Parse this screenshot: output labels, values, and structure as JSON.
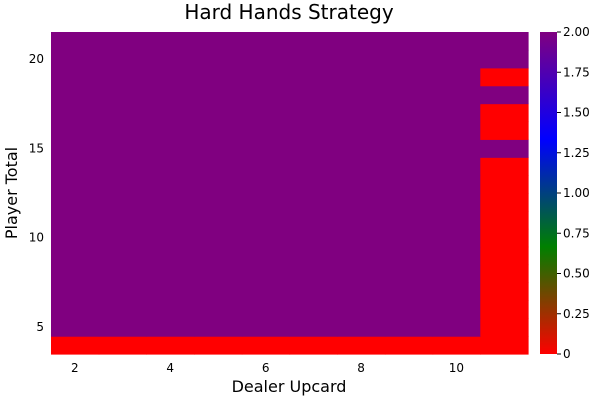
{
  "chart_data": {
    "type": "heatmap",
    "title": "Hard Hands Strategy",
    "xlabel": "Dealer Upcard",
    "ylabel": "Player Total",
    "x": [
      2,
      3,
      4,
      5,
      6,
      7,
      8,
      9,
      10,
      11
    ],
    "y": [
      4,
      5,
      6,
      7,
      8,
      9,
      10,
      11,
      12,
      13,
      14,
      15,
      16,
      17,
      18,
      19,
      20,
      21
    ],
    "x_ticks": [
      2,
      4,
      6,
      8,
      10
    ],
    "y_ticks": [
      5,
      10,
      15,
      20
    ],
    "xlim": [
      1.5,
      11.5
    ],
    "ylim": [
      3.5,
      21.5
    ],
    "grid": false,
    "legend": "colorbar-right",
    "colorbar": {
      "range": [
        0,
        2
      ],
      "ticks": [
        "0",
        "0.25",
        "0.50",
        "0.75",
        "1.00",
        "1.25",
        "1.50",
        "1.75",
        "2.00"
      ],
      "stops": [
        "#ff0000",
        "#008000",
        "#0000ff",
        "#800080"
      ]
    },
    "values": [
      [
        0,
        0,
        0,
        0,
        0,
        0,
        0,
        0,
        0,
        0
      ],
      [
        2,
        2,
        2,
        2,
        2,
        2,
        2,
        2,
        2,
        0
      ],
      [
        2,
        2,
        2,
        2,
        2,
        2,
        2,
        2,
        2,
        0
      ],
      [
        2,
        2,
        2,
        2,
        2,
        2,
        2,
        2,
        2,
        0
      ],
      [
        2,
        2,
        2,
        2,
        2,
        2,
        2,
        2,
        2,
        0
      ],
      [
        2,
        2,
        2,
        2,
        2,
        2,
        2,
        2,
        2,
        0
      ],
      [
        2,
        2,
        2,
        2,
        2,
        2,
        2,
        2,
        2,
        0
      ],
      [
        2,
        2,
        2,
        2,
        2,
        2,
        2,
        2,
        2,
        0
      ],
      [
        2,
        2,
        2,
        2,
        2,
        2,
        2,
        2,
        2,
        0
      ],
      [
        2,
        2,
        2,
        2,
        2,
        2,
        2,
        2,
        2,
        0
      ],
      [
        2,
        2,
        2,
        2,
        2,
        2,
        2,
        2,
        2,
        0
      ],
      [
        2,
        2,
        2,
        2,
        2,
        2,
        2,
        2,
        2,
        2
      ],
      [
        2,
        2,
        2,
        2,
        2,
        2,
        2,
        2,
        2,
        0
      ],
      [
        2,
        2,
        2,
        2,
        2,
        2,
        2,
        2,
        2,
        0
      ],
      [
        2,
        2,
        2,
        2,
        2,
        2,
        2,
        2,
        2,
        2
      ],
      [
        2,
        2,
        2,
        2,
        2,
        2,
        2,
        2,
        2,
        0
      ],
      [
        2,
        2,
        2,
        2,
        2,
        2,
        2,
        2,
        2,
        2
      ],
      [
        2,
        2,
        2,
        2,
        2,
        2,
        2,
        2,
        2,
        2
      ]
    ]
  }
}
